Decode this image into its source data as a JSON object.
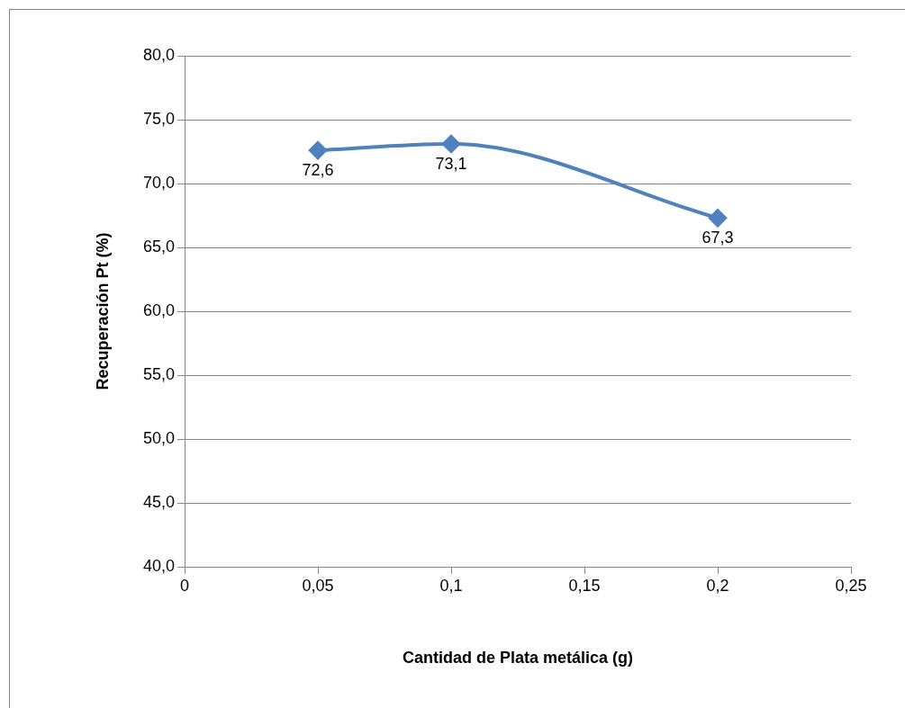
{
  "chart_data": {
    "type": "line",
    "xlabel": "Cantidad de Plata metálica (g)",
    "ylabel": "Recuperación Pt (%)",
    "x": [
      0.05,
      0.1,
      0.2
    ],
    "series": [
      {
        "color": "#4f81bd",
        "values": [
          72.6,
          73.1,
          67.3
        ],
        "value_labels": [
          "72,6",
          "73,1",
          "67,3"
        ]
      }
    ],
    "xlim": [
      0,
      0.25
    ],
    "xticks": [
      0,
      {
        "value": 0.05,
        "label": "0,05"
      },
      {
        "value": 0.1,
        "label": "0,1"
      },
      {
        "value": 0.15,
        "label": "0,15"
      },
      {
        "value": 0.2,
        "label": "0,2"
      },
      {
        "value": 0.25,
        "label": "0,25"
      }
    ],
    "ylim": [
      40,
      80
    ],
    "yticks": [
      {
        "value": 40,
        "label": "40,0"
      },
      {
        "value": 45,
        "label": "45,0"
      },
      {
        "value": 50,
        "label": "50,0"
      },
      {
        "value": 55,
        "label": "55,0"
      },
      {
        "value": 60,
        "label": "60,0"
      },
      {
        "value": 65,
        "label": "65,0"
      },
      {
        "value": 70,
        "label": "70,0"
      },
      {
        "value": 75,
        "label": "75,0"
      },
      {
        "value": 80,
        "label": "80,0"
      }
    ],
    "grid": "y",
    "legend": false,
    "marker": "diamond",
    "line_style": "solid"
  }
}
